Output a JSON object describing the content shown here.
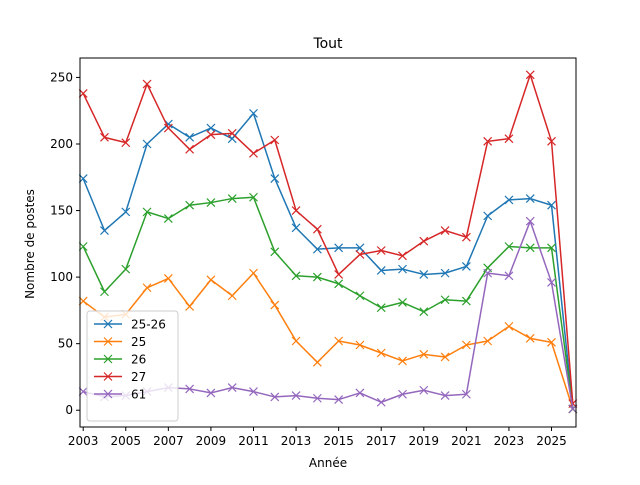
{
  "chart_data": {
    "type": "line",
    "title": "Tout",
    "xlabel": "Année",
    "ylabel": "Nombre de postes",
    "xlim": [
      2002.85,
      2026.15
    ],
    "ylim": [
      -12.6,
      264.6
    ],
    "xticks": [
      2003,
      2005,
      2007,
      2009,
      2011,
      2013,
      2015,
      2017,
      2019,
      2021,
      2023,
      2025
    ],
    "yticks": [
      0,
      50,
      100,
      150,
      200,
      250
    ],
    "grid": false,
    "legend_position": "lower-left",
    "marker": "x",
    "x": [
      2003,
      2004,
      2005,
      2006,
      2007,
      2008,
      2009,
      2010,
      2011,
      2012,
      2013,
      2014,
      2015,
      2016,
      2017,
      2018,
      2019,
      2020,
      2021,
      2022,
      2023,
      2024,
      2025,
      2026
    ],
    "series": [
      {
        "name": "25-26",
        "color": "#1f77b4",
        "values": [
          174,
          135,
          149,
          200,
          215,
          205,
          212,
          204,
          223,
          174,
          137,
          121,
          122,
          122,
          105,
          106,
          102,
          103,
          108,
          146,
          158,
          159,
          154,
          1
        ]
      },
      {
        "name": "25",
        "color": "#ff7f0e",
        "values": [
          82,
          70,
          72,
          92,
          99,
          78,
          98,
          86,
          103,
          79,
          52,
          36,
          52,
          49,
          43,
          37,
          42,
          40,
          49,
          52,
          63,
          54,
          51,
          1
        ]
      },
      {
        "name": "26",
        "color": "#2ca02c",
        "values": [
          123,
          89,
          106,
          149,
          144,
          154,
          156,
          159,
          160,
          119,
          101,
          100,
          95,
          86,
          77,
          81,
          74,
          83,
          82,
          107,
          123,
          122,
          122,
          1
        ]
      },
      {
        "name": "27",
        "color": "#d62728",
        "values": [
          238,
          205,
          201,
          245,
          212,
          196,
          207,
          208,
          193,
          203,
          150,
          136,
          102,
          117,
          120,
          116,
          127,
          135,
          130,
          202,
          204,
          252,
          202,
          5
        ]
      },
      {
        "name": "61",
        "color": "#9467bd",
        "values": [
          14,
          10,
          11,
          14,
          17,
          16,
          13,
          17,
          14,
          10,
          11,
          9,
          8,
          13,
          6,
          12,
          15,
          11,
          12,
          103,
          101,
          142,
          96,
          1
        ]
      }
    ]
  }
}
